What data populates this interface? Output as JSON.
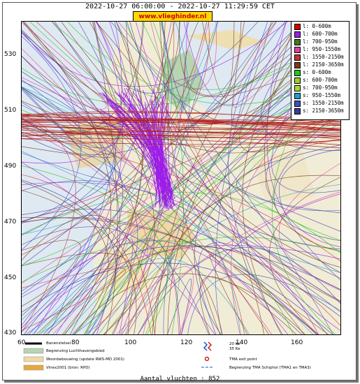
{
  "header": {
    "title": "2022-10-27 06:00:00 - 2022-10-27 11:29:59 CET",
    "site": "www.vlieghinder.nl"
  },
  "axes": {
    "y_ticks": [
      "530",
      "510",
      "490",
      "470",
      "450",
      "430"
    ],
    "x_ticks": [
      "60",
      "80",
      "100",
      "120",
      "140",
      "160"
    ]
  },
  "legend": [
    {
      "label": "l: 0-600m",
      "color": "#d40000"
    },
    {
      "label": "l: 600-700m",
      "color": "#9c1ce8"
    },
    {
      "label": "l: 700-950m",
      "color": "#3a7d1a"
    },
    {
      "label": "l: 950-1550m",
      "color": "#e040a0"
    },
    {
      "label": "l: 1550-2150m",
      "color": "#c83232"
    },
    {
      "label": "l: 2150-3650m",
      "color": "#7a3a1a"
    },
    {
      "label": "s: 0-600m",
      "color": "#22c81e"
    },
    {
      "label": "s: 600-700m",
      "color": "#9ad02a"
    },
    {
      "label": "s: 700-950m",
      "color": "#a8d840"
    },
    {
      "label": "s: 950-1550m",
      "color": "#1aa0c8"
    },
    {
      "label": "s: 1550-2150m",
      "color": "#4050c0"
    },
    {
      "label": "s: 2150-3650m",
      "color": "#3a3aa0"
    }
  ],
  "key": {
    "runway": "Banenstelsel",
    "airport_boundary": "Begrenzing Luchthavengebied",
    "housing": "Woonbebouwing (update RWS-MD 2001)",
    "vinex": "Vinex2001 (bron: RPD)",
    "ke20": "20 Ke",
    "ke35": "35 Ke",
    "tma_exit": "TMA exit point",
    "tma_boundary": "Begrenzing TMA Schiphol  (TMA1 en TMA3)"
  },
  "footer": {
    "count": "Aantal vluchten : 852"
  },
  "colors": {
    "site_bg": "#ffd800",
    "site_text": "#cc0000",
    "map_bg": "#dfe9f2"
  }
}
